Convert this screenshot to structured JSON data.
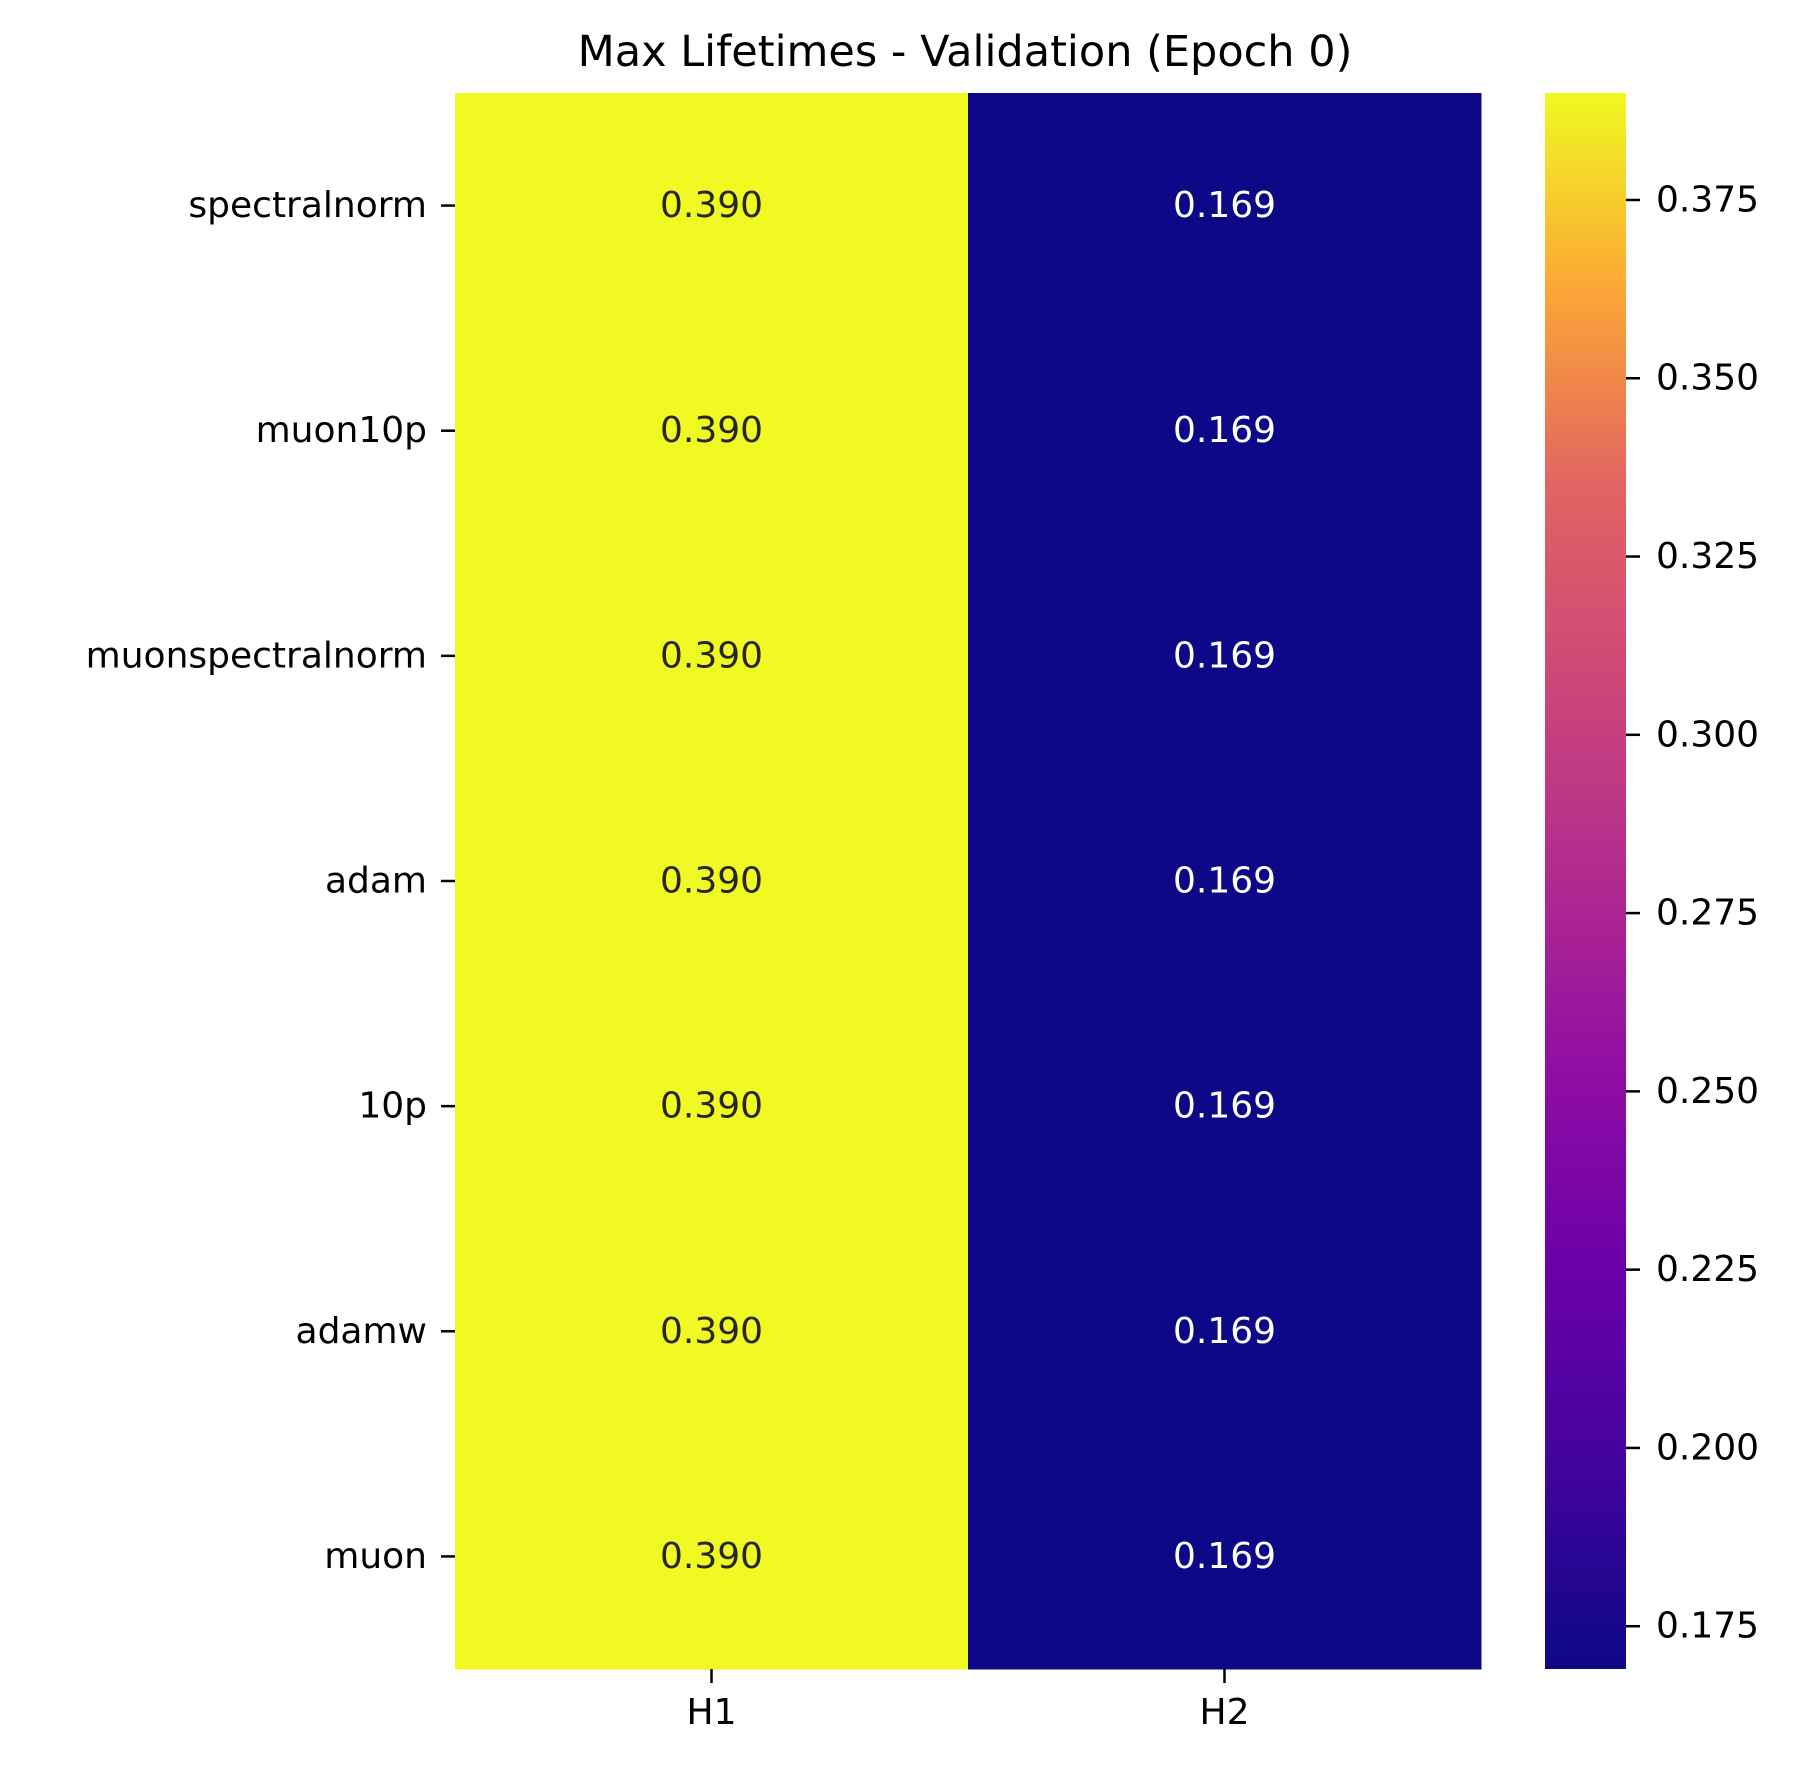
{
  "chart_data": {
    "type": "heatmap",
    "title": "Max Lifetimes - Validation (Epoch 0)",
    "xlabel": "",
    "ylabel": "",
    "x_categories": [
      "H1",
      "H2"
    ],
    "y_categories": [
      "spectralnorm",
      "muon10p",
      "muonspectralnorm",
      "adam",
      "10p",
      "adamw",
      "muon"
    ],
    "values": [
      [
        0.39,
        0.169
      ],
      [
        0.39,
        0.169
      ],
      [
        0.39,
        0.169
      ],
      [
        0.39,
        0.169
      ],
      [
        0.39,
        0.169
      ],
      [
        0.39,
        0.169
      ],
      [
        0.39,
        0.169
      ]
    ],
    "value_labels": [
      [
        "0.390",
        "0.169"
      ],
      [
        "0.390",
        "0.169"
      ],
      [
        "0.390",
        "0.169"
      ],
      [
        "0.390",
        "0.169"
      ],
      [
        "0.390",
        "0.169"
      ],
      [
        "0.390",
        "0.169"
      ],
      [
        "0.390",
        "0.169"
      ]
    ],
    "colormap": "plasma",
    "colorbar": {
      "range": [
        0.169,
        0.39
      ],
      "ticks": [
        0.175,
        0.2,
        0.225,
        0.25,
        0.275,
        0.3,
        0.325,
        0.35,
        0.375
      ],
      "tick_labels": [
        "0.175",
        "0.200",
        "0.225",
        "0.250",
        "0.275",
        "0.300",
        "0.325",
        "0.350",
        "0.375"
      ]
    },
    "colors": {
      "high": "#f0f921",
      "low": "#0d0887",
      "text_on_high": "#262626",
      "text_on_low": "#ffffff"
    }
  }
}
